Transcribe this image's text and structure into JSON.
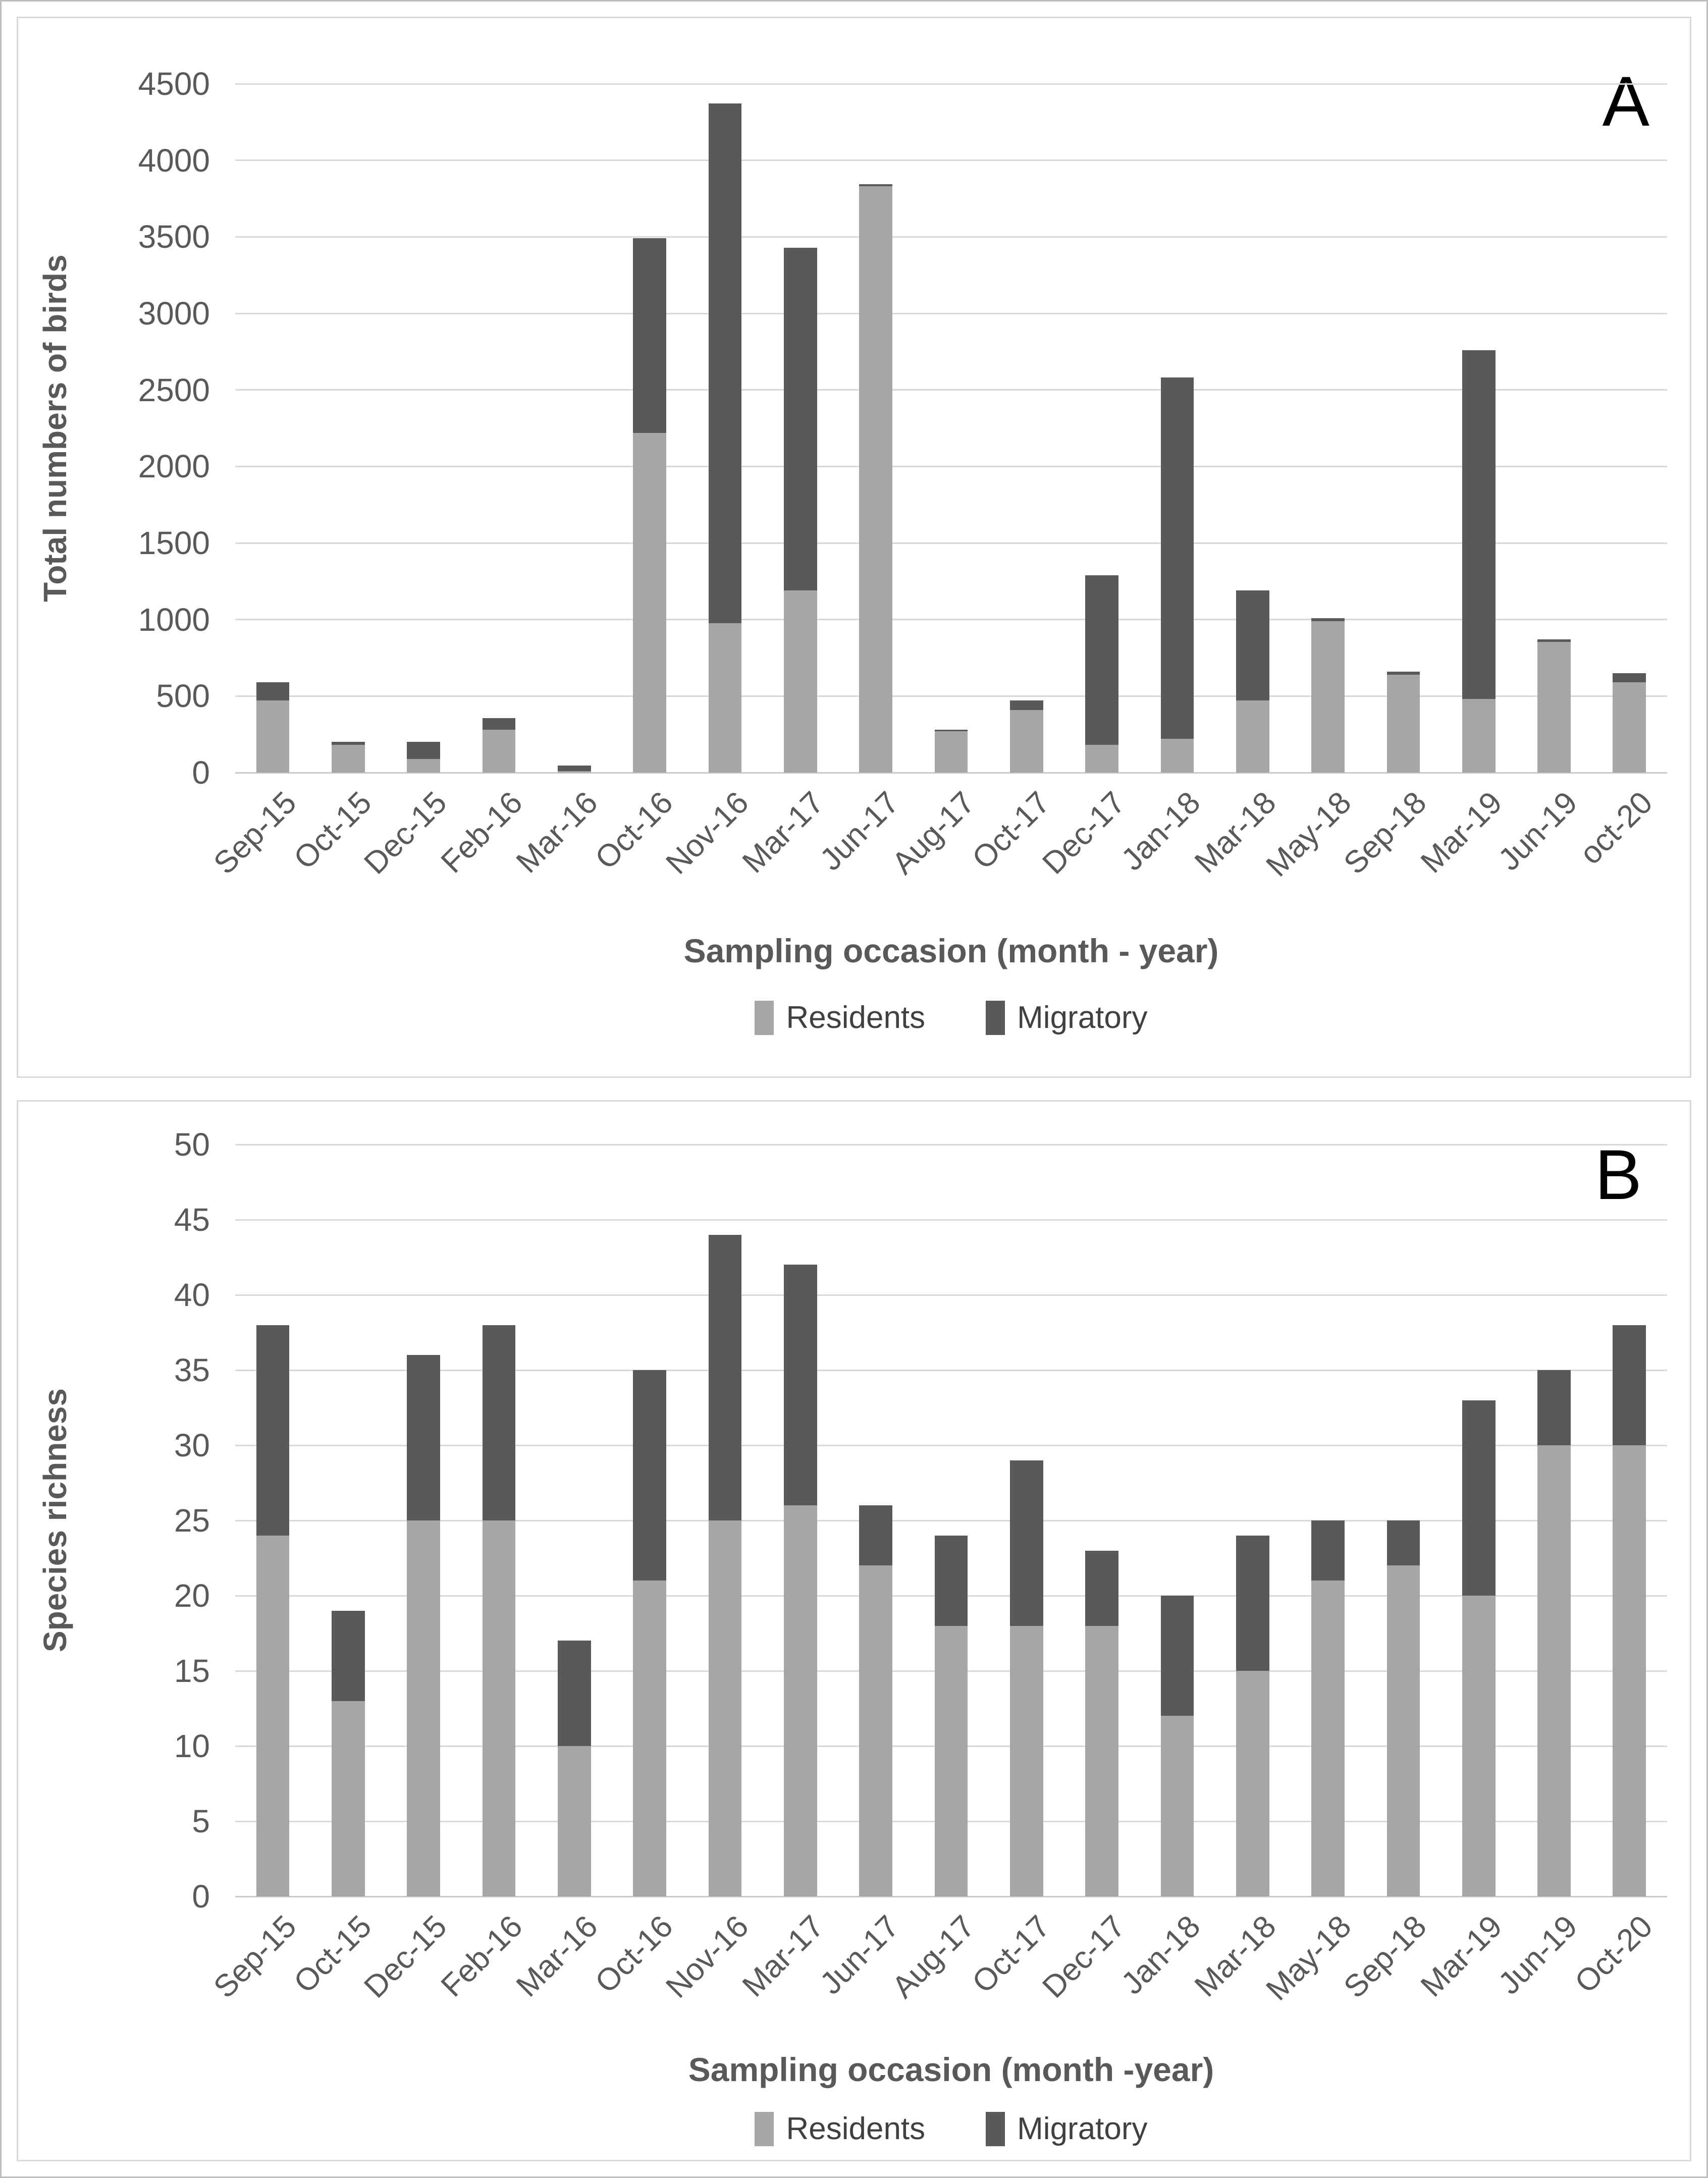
{
  "colors": {
    "residents": "#a6a6a6",
    "migratory": "#595959",
    "gridline": "#d9d9d9",
    "tick_text": "#595959",
    "title_text": "#595959",
    "panel_letter": "#000000",
    "background": "#ffffff"
  },
  "chart_data": [
    {
      "type": "bar",
      "stacked": true,
      "panel_label": "A",
      "ylabel": "Total numbers of birds",
      "xlabel": "Sampling occasion (month - year)",
      "ylim": [
        0,
        4500
      ],
      "ytick_step": 500,
      "grid": true,
      "legend_position": "bottom",
      "categories": [
        "Sep-15",
        "Oct-15",
        "Dec-15",
        "Feb-16",
        "Mar-16",
        "Oct-16",
        "Nov-16",
        "Mar-17",
        "Jun-17",
        "Aug-17",
        "Oct-17",
        "Dec-17",
        "Jan-18",
        "Mar-18",
        "May-18",
        "Sep-18",
        "Mar-19",
        "Jun-19",
        "oct-20"
      ],
      "series": [
        {
          "name": "Residents",
          "values": [
            470,
            180,
            90,
            280,
            10,
            2220,
            975,
            1190,
            3830,
            270,
            410,
            180,
            220,
            470,
            990,
            640,
            480,
            855,
            590
          ]
        },
        {
          "name": "Migratory",
          "values": [
            120,
            20,
            110,
            75,
            35,
            1270,
            3395,
            2240,
            15,
            10,
            60,
            1110,
            2360,
            720,
            20,
            20,
            2280,
            15,
            60
          ]
        }
      ]
    },
    {
      "type": "bar",
      "stacked": true,
      "panel_label": "B",
      "ylabel": "Species richness",
      "xlabel": "Sampling occasion (month -year)",
      "ylim": [
        0,
        50
      ],
      "ytick_step": 5,
      "grid": true,
      "legend_position": "bottom",
      "categories": [
        "Sep-15",
        "Oct-15",
        "Dec-15",
        "Feb-16",
        "Mar-16",
        "Oct-16",
        "Nov-16",
        "Mar-17",
        "Jun-17",
        "Aug-17",
        "Oct-17",
        "Dec-17",
        "Jan-18",
        "Mar-18",
        "May-18",
        "Sep-18",
        "Mar-19",
        "Jun-19",
        "Oct-20"
      ],
      "series": [
        {
          "name": "Residents",
          "values": [
            24,
            13,
            25,
            25,
            10,
            21,
            25,
            26,
            22,
            18,
            18,
            18,
            12,
            15,
            21,
            22,
            20,
            30,
            30
          ]
        },
        {
          "name": "Migratory",
          "values": [
            14,
            6,
            11,
            13,
            7,
            14,
            19,
            16,
            4,
            6,
            11,
            5,
            8,
            9,
            4,
            3,
            13,
            5,
            8
          ]
        }
      ]
    }
  ]
}
